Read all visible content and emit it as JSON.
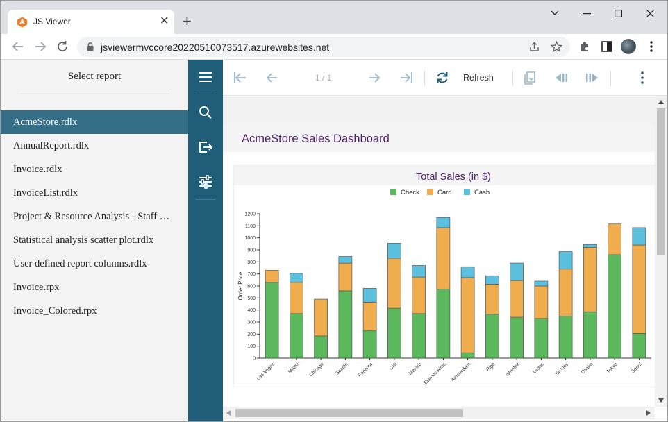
{
  "browser": {
    "tab_title": "JS Viewer",
    "new_tab": "+",
    "url": "jsviewermvccore20220510073517.azurewebsites.net"
  },
  "left_panel": {
    "title": "Select report",
    "reports": [
      "AcmeStore.rdlx",
      "AnnualReport.rdlx",
      "Invoice.rdlx",
      "InvoiceList.rdlx",
      "Project & Resource Analysis - Staff Management.rdlx",
      "Statistical analysis scatter plot.rdlx",
      "User defined report columns.rdlx",
      "Invoice.rpx",
      "Invoice_Colored.rpx"
    ],
    "active_index": 0
  },
  "viewer_toolbar": {
    "page_indicator": "1 / 1",
    "refresh_label": "Refresh"
  },
  "report": {
    "title": "AcmeStore Sales Dashboard"
  },
  "colors": {
    "check": "#5cb85c",
    "card": "#f0ad4e",
    "cash": "#5bc0de",
    "accent": "#1f5d79",
    "active_item": "#356f87",
    "title": "#4a1f66"
  },
  "chart_data": {
    "type": "bar",
    "stacked": true,
    "title": "Total Sales (in $)",
    "xlabel": "",
    "ylabel": "Order Price",
    "ylim": [
      0,
      1200
    ],
    "yticks": [
      0,
      100,
      200,
      300,
      400,
      500,
      600,
      700,
      800,
      900,
      1000,
      1100,
      1200
    ],
    "grid": false,
    "legend_position": "top",
    "categories": [
      "Las Vegas",
      "Miami",
      "Chicago",
      "Seattle",
      "Panama",
      "Cali",
      "Mexico",
      "Buenos Aires",
      "Amsterdam",
      "Riga",
      "Istanbul",
      "Lagos",
      "Sydney",
      "Osaka",
      "Tokyo",
      "Seoul"
    ],
    "series": [
      {
        "name": "Check",
        "color": "#5cb85c",
        "values": [
          630,
          370,
          185,
          560,
          230,
          415,
          370,
          575,
          45,
          365,
          340,
          330,
          350,
          385,
          860,
          205
        ]
      },
      {
        "name": "Card",
        "color": "#f0ad4e",
        "values": [
          100,
          260,
          305,
          230,
          235,
          415,
          305,
          510,
          625,
          250,
          305,
          270,
          390,
          535,
          255,
          735
        ]
      },
      {
        "name": "Cash",
        "color": "#5bc0de",
        "values": [
          0,
          75,
          0,
          55,
          115,
          125,
          95,
          85,
          90,
          70,
          145,
          40,
          145,
          25,
          0,
          145
        ]
      }
    ]
  }
}
